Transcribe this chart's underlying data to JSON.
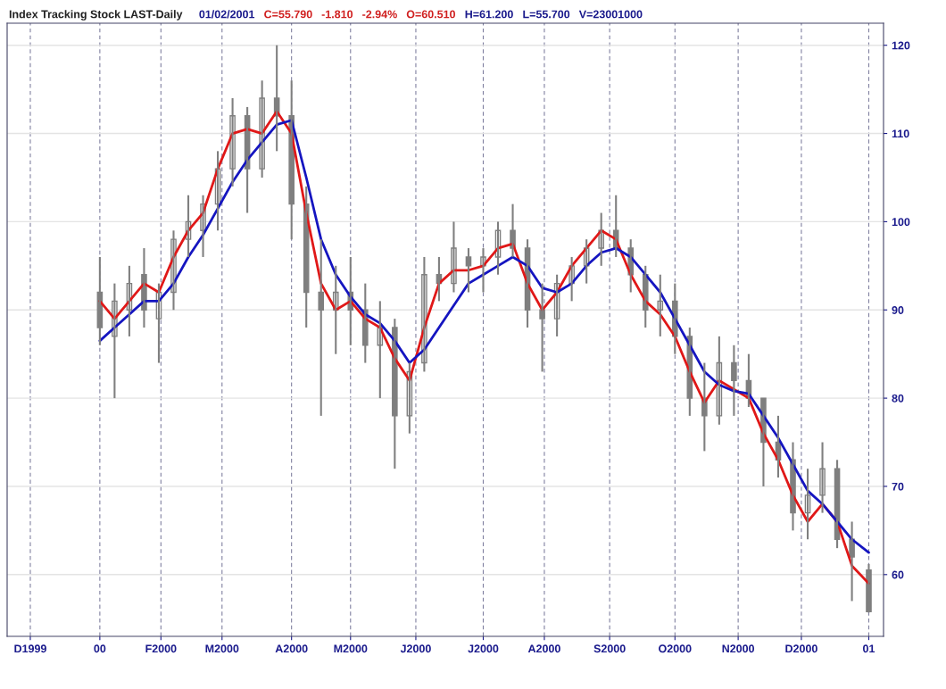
{
  "chart_data": {
    "type": "candlestick",
    "title": "Index Tracking Stock LAST-Daily",
    "annotations": [
      "01/02/2001",
      "C=55.790",
      "-1.810",
      "-2.94%",
      "O=60.510",
      "H=61.200",
      "L=55.700",
      "V=23001000"
    ],
    "x": [
      "2000-01-03",
      "2000-01-10",
      "2000-01-17",
      "2000-01-24",
      "2000-01-31",
      "2000-02-07",
      "2000-02-14",
      "2000-02-21",
      "2000-02-28",
      "2000-03-06",
      "2000-03-13",
      "2000-03-20",
      "2000-03-27",
      "2000-04-03",
      "2000-04-10",
      "2000-04-17",
      "2000-04-24",
      "2000-05-01",
      "2000-05-08",
      "2000-05-15",
      "2000-05-22",
      "2000-05-29",
      "2000-06-05",
      "2000-06-12",
      "2000-06-19",
      "2000-06-26",
      "2000-07-03",
      "2000-07-10",
      "2000-07-17",
      "2000-07-24",
      "2000-07-31",
      "2000-08-07",
      "2000-08-14",
      "2000-08-21",
      "2000-08-28",
      "2000-09-04",
      "2000-09-11",
      "2000-09-18",
      "2000-09-25",
      "2000-10-02",
      "2000-10-09",
      "2000-10-16",
      "2000-10-23",
      "2000-10-30",
      "2000-11-06",
      "2000-11-13",
      "2000-11-20",
      "2000-11-27",
      "2000-12-04",
      "2000-12-11",
      "2000-12-18",
      "2000-12-25",
      "2001-01-02"
    ],
    "ohlc": [
      [
        92,
        96,
        86,
        88
      ],
      [
        87,
        93,
        80,
        91
      ],
      [
        90,
        95,
        87,
        93
      ],
      [
        94,
        97,
        88,
        90
      ],
      [
        89,
        93,
        84,
        92
      ],
      [
        92,
        99,
        90,
        98
      ],
      [
        98,
        103,
        96,
        100
      ],
      [
        99,
        103,
        96,
        102
      ],
      [
        102,
        108,
        99,
        106
      ],
      [
        106,
        114,
        104,
        112
      ],
      [
        112,
        113,
        101,
        106
      ],
      [
        106,
        116,
        105,
        114
      ],
      [
        114,
        120,
        108,
        112
      ],
      [
        112,
        116,
        98,
        102
      ],
      [
        102,
        104,
        88,
        92
      ],
      [
        92,
        98,
        78,
        90
      ],
      [
        90,
        95,
        85,
        92
      ],
      [
        92,
        96,
        86,
        90
      ],
      [
        90,
        93,
        84,
        86
      ],
      [
        86,
        91,
        80,
        88
      ],
      [
        88,
        89,
        72,
        78
      ],
      [
        78,
        84,
        76,
        83
      ],
      [
        84,
        96,
        83,
        94
      ],
      [
        94,
        96,
        91,
        93
      ],
      [
        93,
        100,
        92,
        97
      ],
      [
        96,
        97,
        92,
        95
      ],
      [
        95,
        97,
        92,
        96
      ],
      [
        96,
        100,
        94,
        99
      ],
      [
        99,
        102,
        96,
        97
      ],
      [
        97,
        98,
        88,
        90
      ],
      [
        90,
        93,
        83,
        89
      ],
      [
        89,
        94,
        87,
        93
      ],
      [
        93,
        96,
        91,
        95
      ],
      [
        95,
        98,
        93,
        97
      ],
      [
        97,
        101,
        95,
        99
      ],
      [
        99,
        103,
        96,
        97
      ],
      [
        97,
        98,
        92,
        94
      ],
      [
        94,
        95,
        88,
        90
      ],
      [
        90,
        94,
        87,
        91
      ],
      [
        91,
        93,
        85,
        87
      ],
      [
        87,
        88,
        78,
        80
      ],
      [
        80,
        84,
        74,
        78
      ],
      [
        78,
        87,
        77,
        84
      ],
      [
        84,
        86,
        78,
        82
      ],
      [
        82,
        85,
        79,
        80
      ],
      [
        80,
        80,
        70,
        75
      ],
      [
        75,
        78,
        71,
        73
      ],
      [
        73,
        75,
        65,
        67
      ],
      [
        67,
        72,
        64,
        69
      ],
      [
        69,
        75,
        67,
        72
      ],
      [
        72,
        73,
        63,
        64
      ],
      [
        64,
        66,
        57,
        62
      ],
      [
        60.51,
        61.2,
        55.7,
        55.79
      ]
    ],
    "color": "#7f7f7f",
    "series": [
      {
        "type": "line",
        "color": "#e01818",
        "values": [
          91,
          89,
          91,
          93,
          92,
          96,
          99,
          101,
          106,
          110,
          110.5,
          110,
          112.5,
          110,
          101,
          93,
          90,
          91,
          89,
          88,
          84.5,
          82,
          88,
          93,
          94.5,
          94.5,
          95,
          97,
          97.5,
          93,
          90,
          92,
          95,
          97,
          99,
          98,
          94,
          91,
          89.5,
          87,
          83,
          79.5,
          82,
          81,
          80,
          76,
          73,
          69,
          66,
          68,
          66,
          61,
          59
        ]
      },
      {
        "type": "line",
        "color": "#1515c0",
        "values": [
          86.5,
          88,
          89.5,
          91,
          91,
          93,
          96,
          98.5,
          101.5,
          104.5,
          107,
          109,
          111,
          111.5,
          105,
          98,
          94,
          91.5,
          89.5,
          88.5,
          86.5,
          84,
          85.5,
          88,
          90.5,
          93,
          94,
          95,
          96,
          95,
          92.5,
          92,
          93,
          95,
          96.5,
          97,
          96,
          94,
          92,
          89,
          86,
          83,
          81.5,
          80.8,
          80.5,
          78,
          75.5,
          72.5,
          69.5,
          68,
          66,
          64,
          62.5
        ]
      }
    ],
    "xlim": [
      "1999-11-20",
      "2001-01-09"
    ],
    "xticks": [
      {
        "value": "1999-12-01",
        "label": "D1999"
      },
      {
        "value": "2000-01-03",
        "label": "00"
      },
      {
        "value": "2000-02-01",
        "label": "F2000"
      },
      {
        "value": "2000-03-01",
        "label": "M2000"
      },
      {
        "value": "2000-04-03",
        "label": "A2000"
      },
      {
        "value": "2000-05-01",
        "label": "M2000"
      },
      {
        "value": "2000-06-01",
        "label": "J2000"
      },
      {
        "value": "2000-07-03",
        "label": "J2000"
      },
      {
        "value": "2000-08-01",
        "label": "A2000"
      },
      {
        "value": "2000-09-01",
        "label": "S2000"
      },
      {
        "value": "2000-10-02",
        "label": "O2000"
      },
      {
        "value": "2000-11-01",
        "label": "N2000"
      },
      {
        "value": "2000-12-01",
        "label": "D2000"
      },
      {
        "value": "2001-01-02",
        "label": "01"
      }
    ],
    "ylim": [
      53,
      122.5
    ],
    "yticks": [
      60,
      70,
      80,
      90,
      100,
      110,
      120
    ],
    "grid": true
  }
}
